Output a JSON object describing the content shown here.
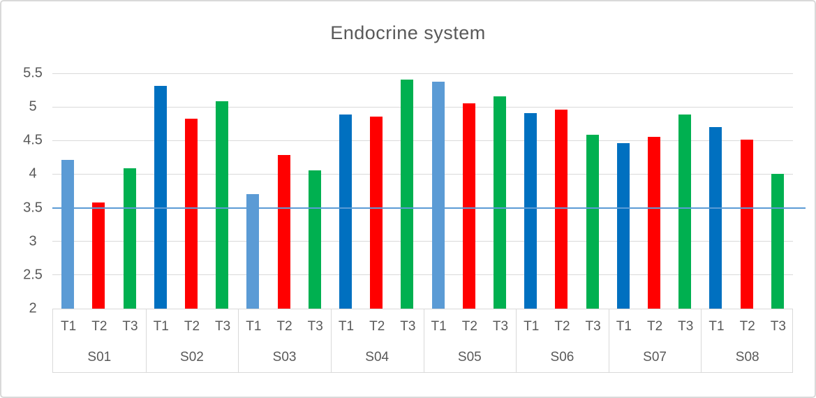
{
  "frame": {
    "background": "#FFFFFF",
    "border_color": "#D9D9D9"
  },
  "chart_data": {
    "type": "bar",
    "title": "Endocrine system",
    "title_color": "#595959",
    "categories": [
      "S01",
      "S02",
      "S03",
      "S04",
      "S05",
      "S06",
      "S07",
      "S08"
    ],
    "sub_categories": [
      "T1",
      "T2",
      "T3"
    ],
    "series": [
      {
        "name": "T1",
        "values": [
          4.21,
          5.31,
          3.7,
          4.89,
          5.38,
          4.91,
          4.46,
          4.7
        ],
        "colors": [
          "#5B9BD5",
          "#0070C0",
          "#5B9BD5",
          "#0070C0",
          "#5B9BD5",
          "#0070C0",
          "#0070C0",
          "#0070C0"
        ]
      },
      {
        "name": "T2",
        "values": [
          3.58,
          4.83,
          4.28,
          4.86,
          5.05,
          4.96,
          4.56,
          4.51
        ],
        "colors": [
          "#FF0000",
          "#FF0000",
          "#FF0000",
          "#FF0000",
          "#FF0000",
          "#FF0000",
          "#FF0000",
          "#FF0000"
        ]
      },
      {
        "name": "T3",
        "values": [
          4.09,
          5.08,
          4.06,
          5.41,
          5.16,
          4.59,
          4.89,
          4.0
        ],
        "colors": [
          "#00B050",
          "#00B050",
          "#00B050",
          "#00B050",
          "#00B050",
          "#00B050",
          "#00B050",
          "#00B050"
        ]
      }
    ],
    "ylim": [
      2,
      5.5
    ],
    "yticks": [
      {
        "label": "5.5",
        "value": 5.5
      },
      {
        "label": "5",
        "value": 5.0
      },
      {
        "label": "4.5",
        "value": 4.5
      },
      {
        "label": "4",
        "value": 4.0
      },
      {
        "label": "3.5",
        "value": 3.5
      },
      {
        "label": "3",
        "value": 3.0
      },
      {
        "label": "2.5",
        "value": 2.5
      },
      {
        "label": "2",
        "value": 2.0
      }
    ],
    "reference_line": {
      "value": 3.5,
      "color": "#5B9BD5"
    },
    "grid": true,
    "legend": "none",
    "axis_colors": {
      "gridline": "#D9D9D9",
      "axis_line": "#BFBFBF",
      "tick_text": "#595959"
    }
  }
}
